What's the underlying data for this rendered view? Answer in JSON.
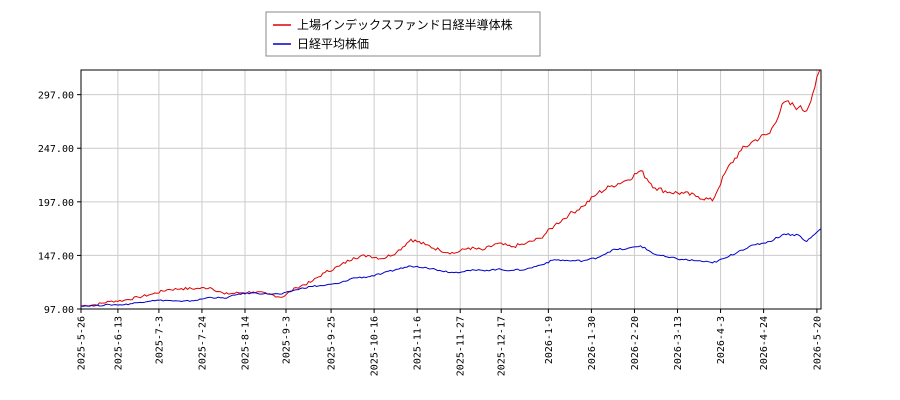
{
  "chart_data": {
    "type": "line",
    "title": "",
    "xlabel": "",
    "ylabel": "",
    "grid": true,
    "legend_position": "top-center",
    "ylim": [
      97.0,
      320.0
    ],
    "xlim": [
      "2025-05-26",
      "2026-05-22"
    ],
    "y_ticks": [
      "97.00",
      "147.00",
      "197.00",
      "247.00",
      "297.00"
    ],
    "x_ticks": [
      "2025-5-26",
      "2025-6-13",
      "2025-7-3",
      "2025-7-24",
      "2025-8-14",
      "2025-9-3",
      "2025-9-25",
      "2025-10-16",
      "2025-11-6",
      "2025-11-27",
      "2025-12-17",
      "2026-1-9",
      "2026-1-30",
      "2026-2-20",
      "2026-3-13",
      "2026-4-3",
      "2026-4-24",
      "2026-5-20"
    ],
    "series": [
      {
        "name": "上場インデックスファンド日経半導体株",
        "color": "#dd0000",
        "points": [
          [
            "2025-05-26",
            100
          ],
          [
            "2025-06-02",
            101
          ],
          [
            "2025-06-09",
            104
          ],
          [
            "2025-06-16",
            105
          ],
          [
            "2025-06-23",
            108
          ],
          [
            "2025-06-30",
            111
          ],
          [
            "2025-07-07",
            115
          ],
          [
            "2025-07-14",
            116
          ],
          [
            "2025-07-21",
            116
          ],
          [
            "2025-07-28",
            117
          ],
          [
            "2025-08-04",
            111
          ],
          [
            "2025-08-11",
            112
          ],
          [
            "2025-08-18",
            113
          ],
          [
            "2025-08-25",
            111
          ],
          [
            "2025-09-01",
            108
          ],
          [
            "2025-09-08",
            117
          ],
          [
            "2025-09-15",
            122
          ],
          [
            "2025-09-22",
            131
          ],
          [
            "2025-09-29",
            137
          ],
          [
            "2025-10-06",
            145
          ],
          [
            "2025-10-13",
            147
          ],
          [
            "2025-10-20",
            144
          ],
          [
            "2025-10-27",
            150
          ],
          [
            "2025-11-03",
            162
          ],
          [
            "2025-11-10",
            157
          ],
          [
            "2025-11-17",
            152
          ],
          [
            "2025-11-24",
            149
          ],
          [
            "2025-12-01",
            154
          ],
          [
            "2025-12-08",
            152
          ],
          [
            "2025-12-15",
            158
          ],
          [
            "2025-12-22",
            155
          ],
          [
            "2025-12-29",
            158
          ],
          [
            "2026-01-05",
            163
          ],
          [
            "2026-01-12",
            175
          ],
          [
            "2026-01-19",
            185
          ],
          [
            "2026-01-26",
            193
          ],
          [
            "2026-02-02",
            205
          ],
          [
            "2026-02-09",
            212
          ],
          [
            "2026-02-16",
            217
          ],
          [
            "2026-02-23",
            226
          ],
          [
            "2026-03-02",
            210
          ],
          [
            "2026-03-09",
            206
          ],
          [
            "2026-03-16",
            205
          ],
          [
            "2026-03-23",
            202
          ],
          [
            "2026-03-30",
            198
          ],
          [
            "2026-04-06",
            227
          ],
          [
            "2026-04-13",
            245
          ],
          [
            "2026-04-20",
            255
          ],
          [
            "2026-04-27",
            261
          ],
          [
            "2026-05-04",
            290
          ],
          [
            "2026-05-11",
            285
          ],
          [
            "2026-05-15",
            282
          ],
          [
            "2026-05-22",
            322
          ]
        ]
      },
      {
        "name": "日経平均株価",
        "color": "#0000cc",
        "points": [
          [
            "2025-05-26",
            100
          ],
          [
            "2025-06-02",
            100
          ],
          [
            "2025-06-09",
            101
          ],
          [
            "2025-06-16",
            101
          ],
          [
            "2025-06-23",
            103
          ],
          [
            "2025-06-30",
            105
          ],
          [
            "2025-07-07",
            105
          ],
          [
            "2025-07-14",
            104
          ],
          [
            "2025-07-21",
            105
          ],
          [
            "2025-07-28",
            108
          ],
          [
            "2025-08-04",
            107
          ],
          [
            "2025-08-11",
            111
          ],
          [
            "2025-08-18",
            112
          ],
          [
            "2025-08-25",
            111
          ],
          [
            "2025-09-01",
            111
          ],
          [
            "2025-09-08",
            115
          ],
          [
            "2025-09-15",
            118
          ],
          [
            "2025-09-22",
            119
          ],
          [
            "2025-09-29",
            121
          ],
          [
            "2025-10-06",
            126
          ],
          [
            "2025-10-13",
            127
          ],
          [
            "2025-10-20",
            130
          ],
          [
            "2025-10-27",
            134
          ],
          [
            "2025-11-03",
            137
          ],
          [
            "2025-11-10",
            136
          ],
          [
            "2025-11-17",
            133
          ],
          [
            "2025-11-24",
            131
          ],
          [
            "2025-12-01",
            133
          ],
          [
            "2025-12-08",
            133
          ],
          [
            "2025-12-15",
            134
          ],
          [
            "2025-12-22",
            133
          ],
          [
            "2025-12-29",
            134
          ],
          [
            "2026-01-05",
            138
          ],
          [
            "2026-01-12",
            143
          ],
          [
            "2026-01-19",
            142
          ],
          [
            "2026-01-26",
            142
          ],
          [
            "2026-02-02",
            145
          ],
          [
            "2026-02-09",
            152
          ],
          [
            "2026-02-16",
            153
          ],
          [
            "2026-02-23",
            156
          ],
          [
            "2026-03-02",
            148
          ],
          [
            "2026-03-09",
            145
          ],
          [
            "2026-03-16",
            143
          ],
          [
            "2026-03-23",
            142
          ],
          [
            "2026-03-30",
            140
          ],
          [
            "2026-04-06",
            145
          ],
          [
            "2026-04-13",
            152
          ],
          [
            "2026-04-20",
            157
          ],
          [
            "2026-04-27",
            160
          ],
          [
            "2026-05-04",
            167
          ],
          [
            "2026-05-11",
            166
          ],
          [
            "2026-05-15",
            160
          ],
          [
            "2026-05-22",
            172
          ]
        ]
      }
    ]
  }
}
